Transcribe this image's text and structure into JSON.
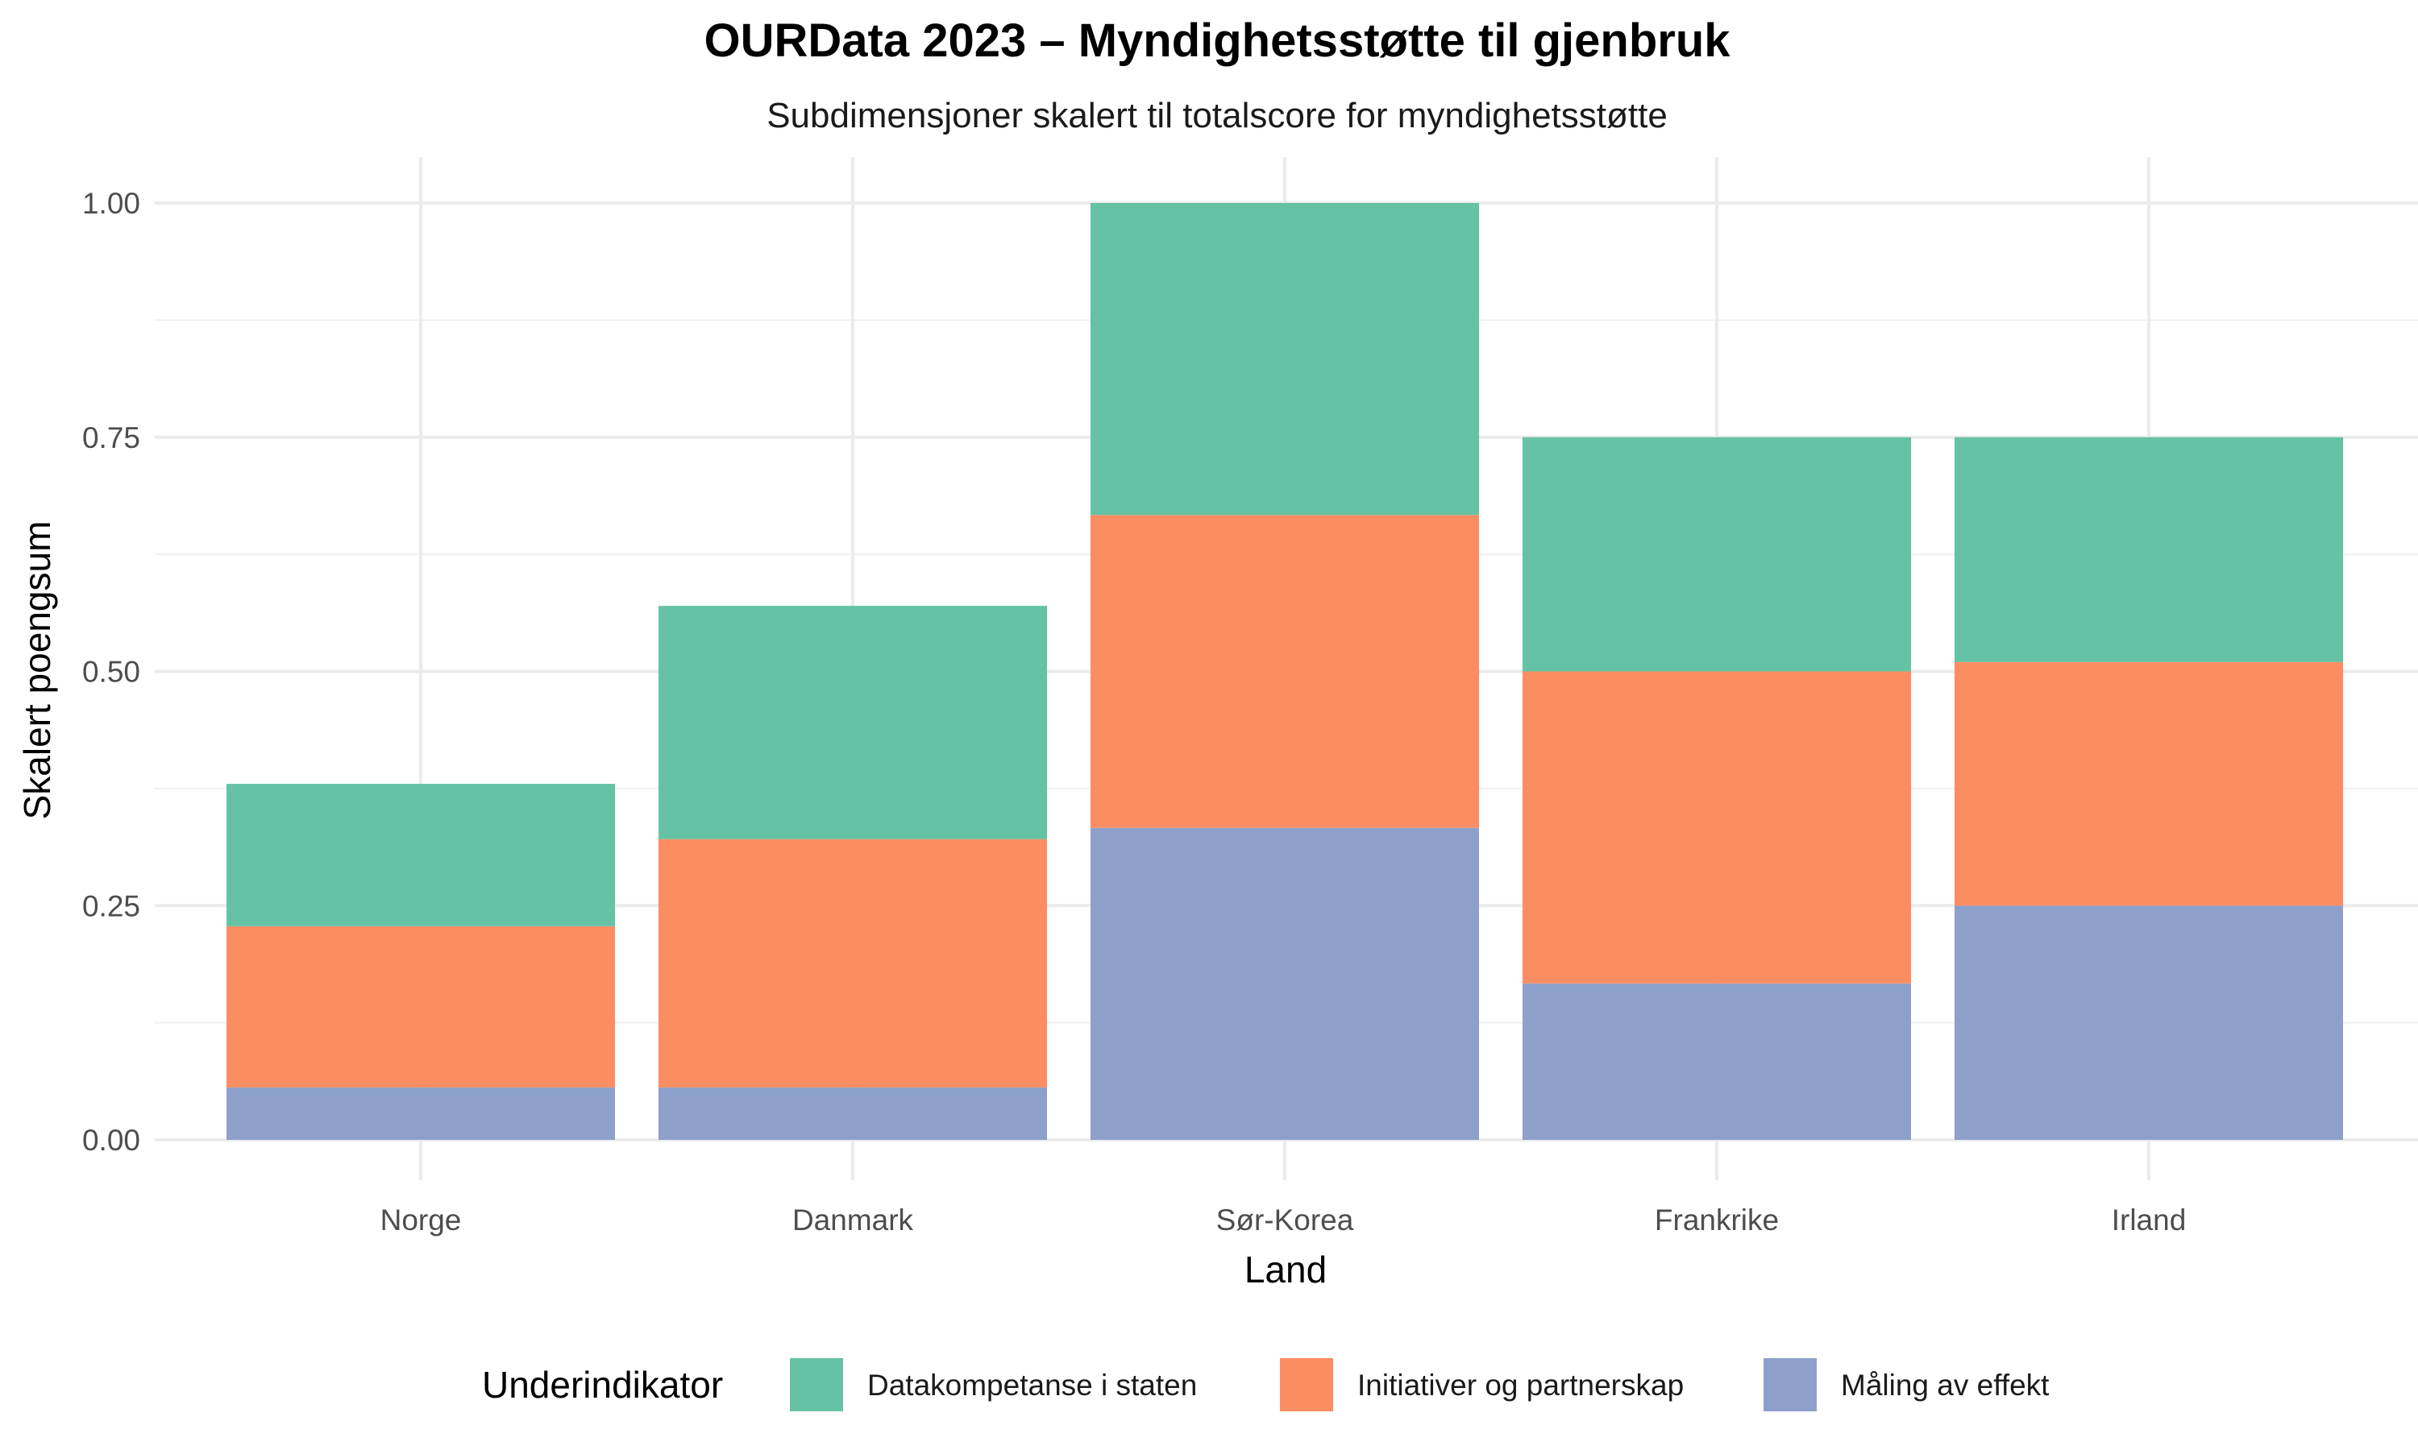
{
  "chart_data": {
    "type": "bar",
    "stacked": true,
    "title": "OURData 2023 – Myndighetsstøtte til gjenbruk",
    "subtitle": "Subdimensjoner skalert til totalscore for myndighetsstøtte",
    "xlabel": "Land",
    "ylabel": "Skalert poengsum",
    "categories": [
      "Norge",
      "Danmark",
      "Sør-Korea",
      "Frankrike",
      "Irland"
    ],
    "ylim": [
      0,
      1.05
    ],
    "yticks": [
      0,
      0.25,
      0.5,
      0.75,
      1.0
    ],
    "ytick_labels": [
      "0.00",
      "0.25",
      "0.50",
      "0.75",
      "1.00"
    ],
    "grid": true,
    "legend": {
      "title": "Underindikator",
      "position": "bottom",
      "order": [
        "Datakompetanse i staten",
        "Initiativer og partnerskap",
        "Måling av effekt"
      ]
    },
    "series": [
      {
        "name": "Måling av effekt",
        "color": "#8da0cb",
        "values": [
          0.056,
          0.056,
          0.333,
          0.167,
          0.25
        ]
      },
      {
        "name": "Initiativer og partnerskap",
        "color": "#fc8d62",
        "values": [
          0.172,
          0.265,
          0.334,
          0.333,
          0.26
        ]
      },
      {
        "name": "Datakompetanse i staten",
        "color": "#66c2a5",
        "values": [
          0.152,
          0.249,
          0.333,
          0.25,
          0.24
        ]
      }
    ]
  }
}
